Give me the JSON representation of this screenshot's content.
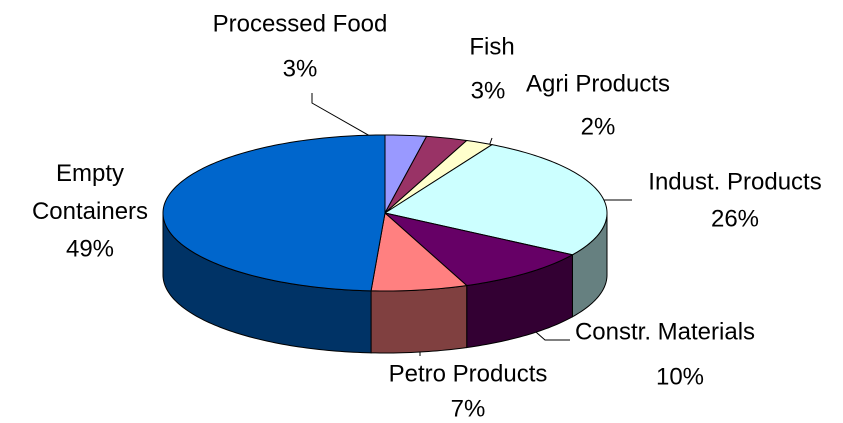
{
  "chart_data": {
    "type": "pie",
    "categories": [
      "Processed Food",
      "Fish",
      "Agri Products",
      "Indust. Products",
      "Constr. Materials",
      "Petro Products",
      "Empty Containers"
    ],
    "values": [
      3,
      3,
      2,
      26,
      10,
      7,
      49
    ],
    "value_labels": [
      "3%",
      "3%",
      "2%",
      "26%",
      "10%",
      "7%",
      "49%"
    ],
    "colors": [
      "#9999ff",
      "#993366",
      "#ffffcc",
      "#ccffff",
      "#660066",
      "#ff8080",
      "#0066cc"
    ]
  }
}
